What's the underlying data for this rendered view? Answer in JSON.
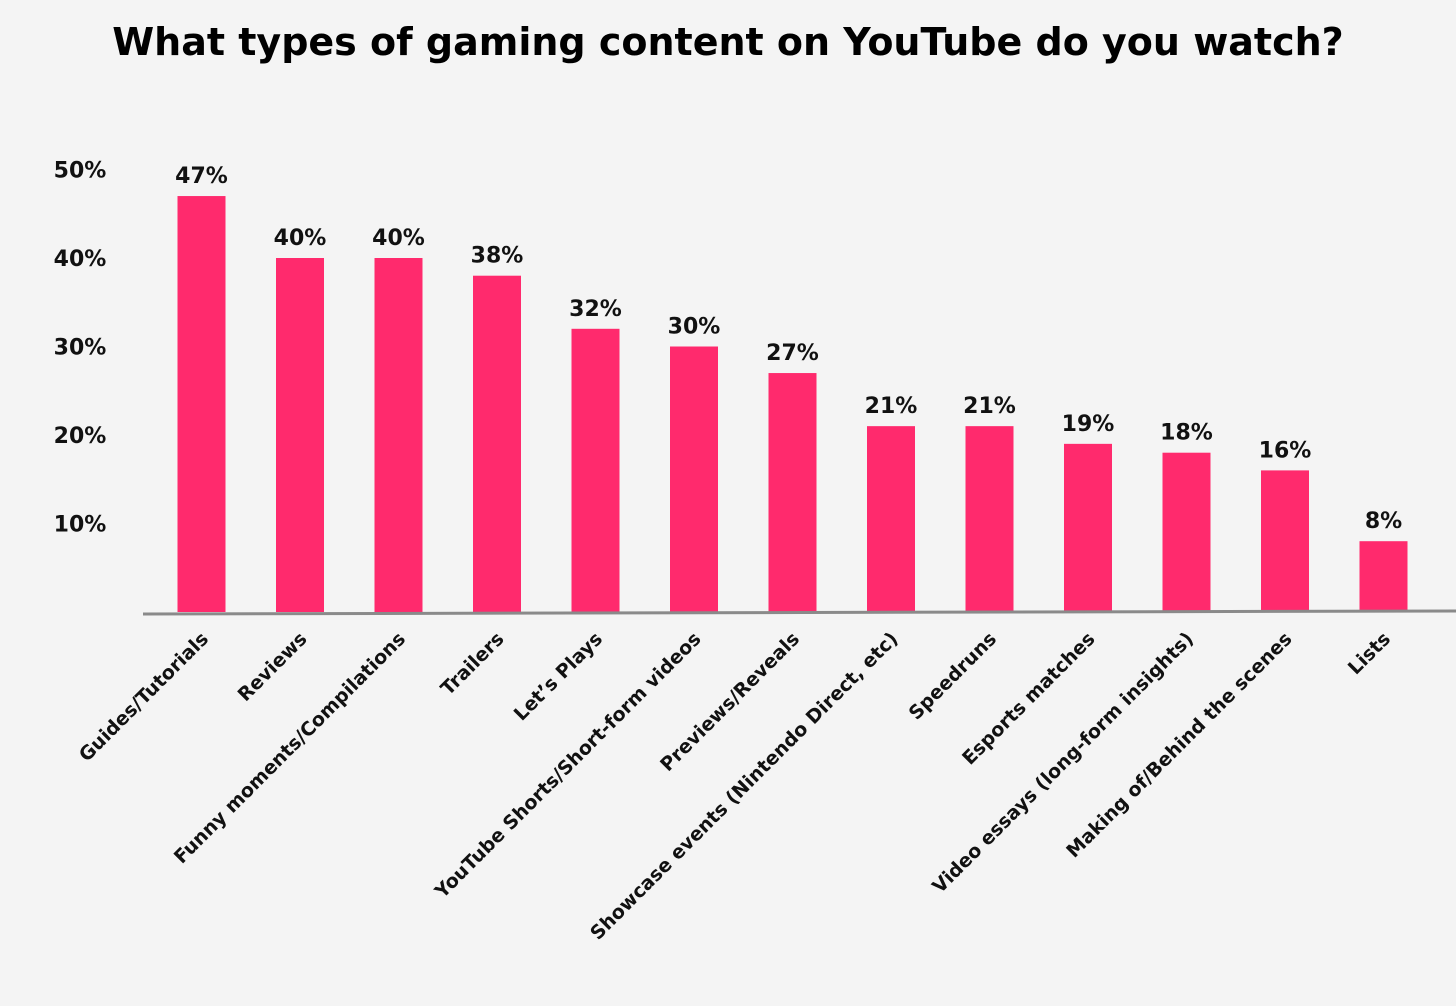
{
  "chart_data": {
    "type": "bar",
    "title": "What types of gaming content on YouTube do you watch?",
    "xlabel": "",
    "ylabel": "",
    "ylim": [
      0,
      50
    ],
    "yticks": [
      {
        "value": 10,
        "label": "10%"
      },
      {
        "value": 20,
        "label": "20%"
      },
      {
        "value": 30,
        "label": "30%"
      },
      {
        "value": 40,
        "label": "40%"
      },
      {
        "value": 50,
        "label": "50%"
      }
    ],
    "grid": false,
    "bar_color": "#ff2a6d",
    "axis_color": "#8a8a8a",
    "categories": [
      "Guides/Tutorials",
      "Reviews",
      "Funny moments/Compilations",
      "Trailers",
      "Let’s Plays",
      "YouTube Shorts/Short-form videos",
      "Previews/Reveals",
      "Showcase events (Nintendo Direct, etc)",
      "Speedruns",
      "Esports matches",
      "Video essays (long-form insights)",
      "Making of/Behind the scenes",
      "Lists"
    ],
    "values": [
      47,
      40,
      40,
      38,
      32,
      30,
      27,
      21,
      21,
      19,
      18,
      16,
      8
    ],
    "data_labels": [
      "47%",
      "40%",
      "40%",
      "38%",
      "32%",
      "30%",
      "27%",
      "21%",
      "21%",
      "19%",
      "18%",
      "16%",
      "8%"
    ]
  }
}
